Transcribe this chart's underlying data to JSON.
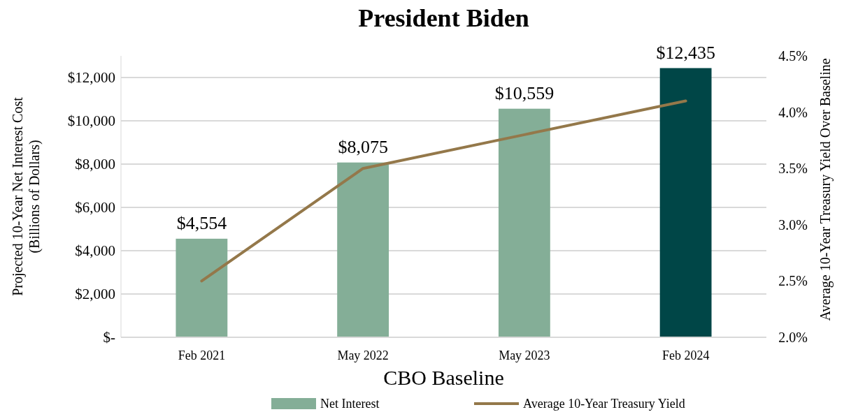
{
  "chart_data": {
    "type": "bar",
    "title": "President Biden",
    "xlabel": "CBO Baseline",
    "ylabel": "Projected 10-Year Net Interest Cost (Billions of Dollars)",
    "y2label": "Average 10-Year Treasury Yield Over Baseline",
    "categories": [
      "Feb 2021",
      "May 2022",
      "May 2023",
      "Feb 2024"
    ],
    "series": [
      {
        "name": "Net Interest",
        "color": "#84ae97",
        "colors": [
          "#84ae97",
          "#84ae97",
          "#84ae97",
          "#004647"
        ],
        "values": [
          4554,
          8075,
          10559,
          12435
        ],
        "value_labels": [
          "$4,554",
          "$8,075",
          "$10,559",
          "$12,435"
        ]
      },
      {
        "name": "Average 10-Year Treasury Yield",
        "type": "line",
        "axis": "y2",
        "color": "#94784a",
        "values": [
          2.5,
          3.5,
          3.8,
          4.1
        ]
      }
    ],
    "ylim": [
      0,
      13000
    ],
    "yticks": [
      {
        "value": 0,
        "label": "$-"
      },
      {
        "value": 2000,
        "label": "$2,000"
      },
      {
        "value": 4000,
        "label": "$4,000"
      },
      {
        "value": 6000,
        "label": "$6,000"
      },
      {
        "value": 8000,
        "label": "$8,000"
      },
      {
        "value": 10000,
        "label": "$10,000"
      },
      {
        "value": 12000,
        "label": "$12,000"
      }
    ],
    "y2lim": [
      2.0,
      4.5
    ],
    "y2ticks": [
      {
        "value": 2.0,
        "label": "2.0%"
      },
      {
        "value": 2.5,
        "label": "2.5%"
      },
      {
        "value": 3.0,
        "label": "3.0%"
      },
      {
        "value": 3.5,
        "label": "3.5%"
      },
      {
        "value": 4.0,
        "label": "4.0%"
      },
      {
        "value": 4.5,
        "label": "4.5%"
      }
    ],
    "grid": "y",
    "legend": "bottom",
    "marker": "none",
    "line_style": "solid"
  }
}
